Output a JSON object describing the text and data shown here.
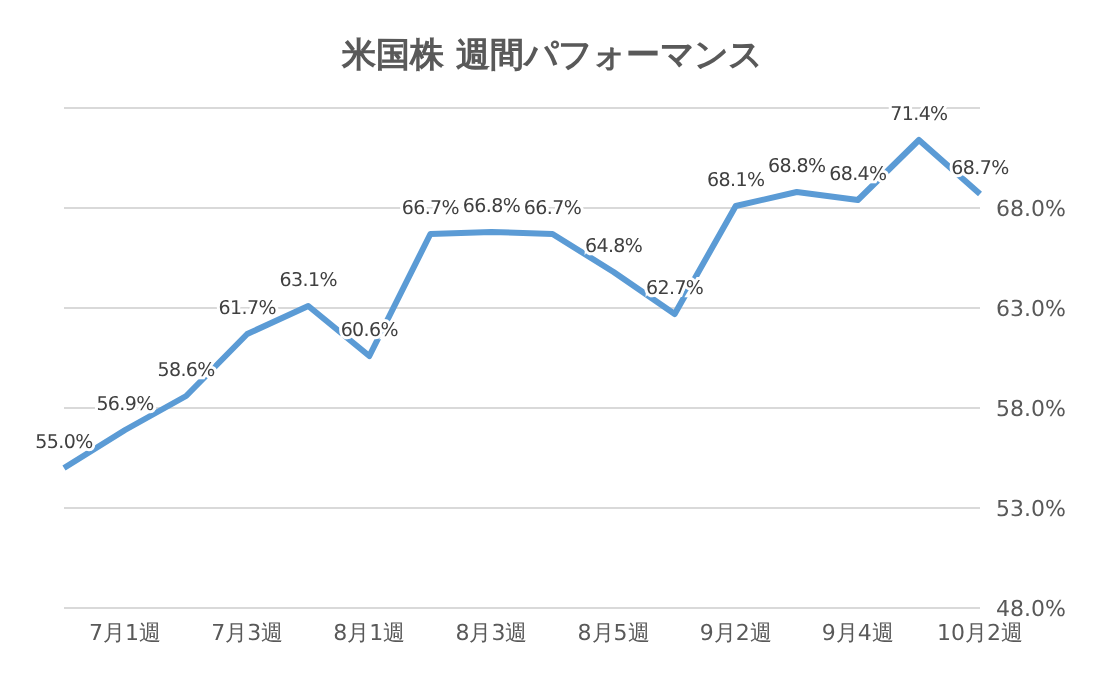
{
  "chart_data": {
    "type": "line",
    "title": "米国株 週間パフォーマンス",
    "categories": [
      null,
      "7月1週",
      null,
      "7月3週",
      null,
      "8月1週",
      null,
      "8月3週",
      null,
      "8月5週",
      null,
      "9月2週",
      null,
      "9月4週",
      null,
      "10月2週"
    ],
    "series": [
      {
        "color": "#5b9bd5",
        "values": [
          55.0,
          56.9,
          58.6,
          61.7,
          63.1,
          60.6,
          66.7,
          66.8,
          66.7,
          64.8,
          62.7,
          68.1,
          68.8,
          68.4,
          71.4,
          68.7
        ],
        "value_labels": [
          "55.0%",
          "56.9%",
          "58.6%",
          "61.7%",
          "63.1%",
          "60.6%",
          "66.7%",
          "66.8%",
          "66.7%",
          "64.8%",
          "62.7%",
          "68.1%",
          "68.8%",
          "68.4%",
          "71.4%",
          "68.7%"
        ]
      }
    ],
    "ylim": [
      48,
      73
    ],
    "yticks": [
      {
        "value": 48,
        "label": "48.0%"
      },
      {
        "value": 53,
        "label": "53.0%"
      },
      {
        "value": 58,
        "label": "58.0%"
      },
      {
        "value": 63,
        "label": "63.0%"
      },
      {
        "value": 68,
        "label": "68.0%"
      }
    ],
    "grid": "y",
    "legend": false,
    "marker": "none",
    "line_style": "solid"
  }
}
